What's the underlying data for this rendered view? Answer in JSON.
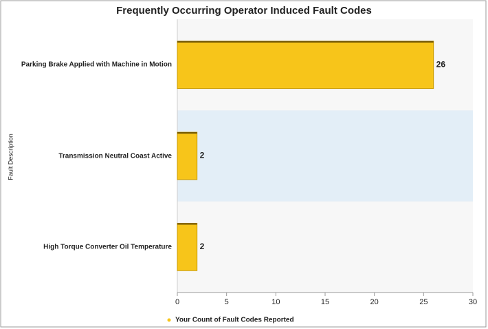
{
  "chart_data": {
    "type": "barh",
    "title": "Frequently Occurring Operator Induced Fault Codes",
    "y_label": "Fault Description",
    "categories": [
      "Parking Brake Applied with Machine in Motion",
      "Transmission Neutral Coast Active",
      "High Torque Converter Oil Temperature"
    ],
    "series": [
      {
        "name": "Your Count of Fault Codes Reported",
        "color": "#f7c51a",
        "values": [
          26,
          2,
          2
        ]
      }
    ],
    "xlim": [
      0,
      30
    ],
    "xticks": [
      0,
      5,
      10,
      15,
      20,
      25,
      30
    ],
    "legend": "bottom"
  }
}
